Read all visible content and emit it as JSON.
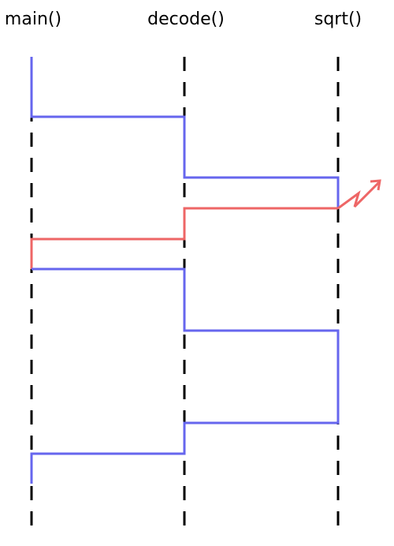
{
  "colors": {
    "background": "#ffffff",
    "lifeline": "#000000",
    "normal_flow": "#6666ee",
    "exception_flow": "#ee6666"
  },
  "lanes": [
    {
      "label": "main()"
    },
    {
      "label": "decode()"
    },
    {
      "label": "sqrt()"
    }
  ],
  "icons": {
    "exception_arrow": "lightning-arrow-icon"
  }
}
